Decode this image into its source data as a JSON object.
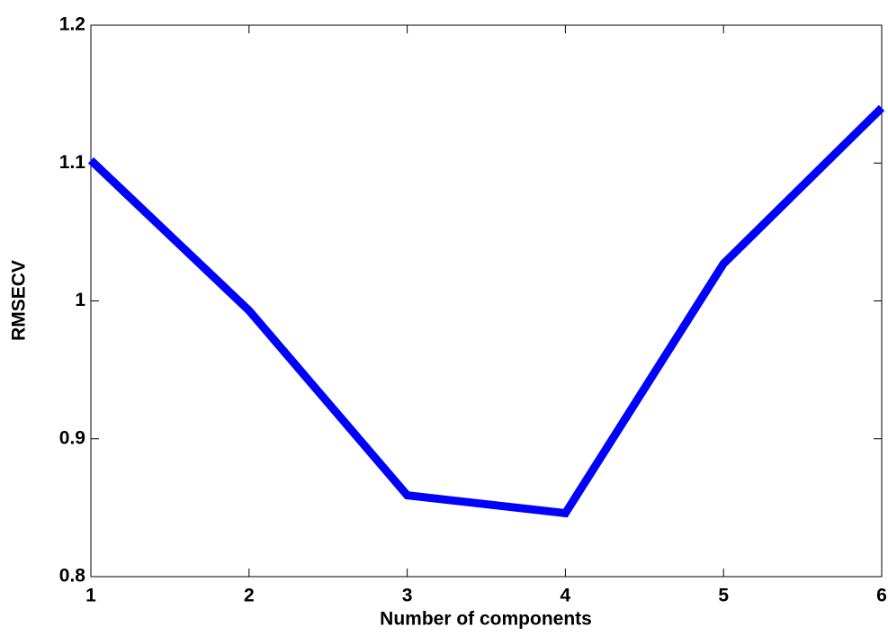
{
  "chart_data": {
    "type": "line",
    "xlabel": "Number of components",
    "ylabel": "RMSECV",
    "x": [
      1,
      2,
      3,
      4,
      5,
      6
    ],
    "series": [
      {
        "color": "#0000ff",
        "values": [
          1.102,
          0.993,
          0.859,
          0.846,
          1.027,
          1.14
        ]
      }
    ],
    "xlim": [
      1,
      6
    ],
    "xticks": [
      1,
      2,
      3,
      4,
      5,
      6
    ],
    "ylim": [
      0.8,
      1.2
    ],
    "yticks": [
      0.8,
      0.9,
      1,
      1.1,
      1.2
    ],
    "grid": false
  }
}
